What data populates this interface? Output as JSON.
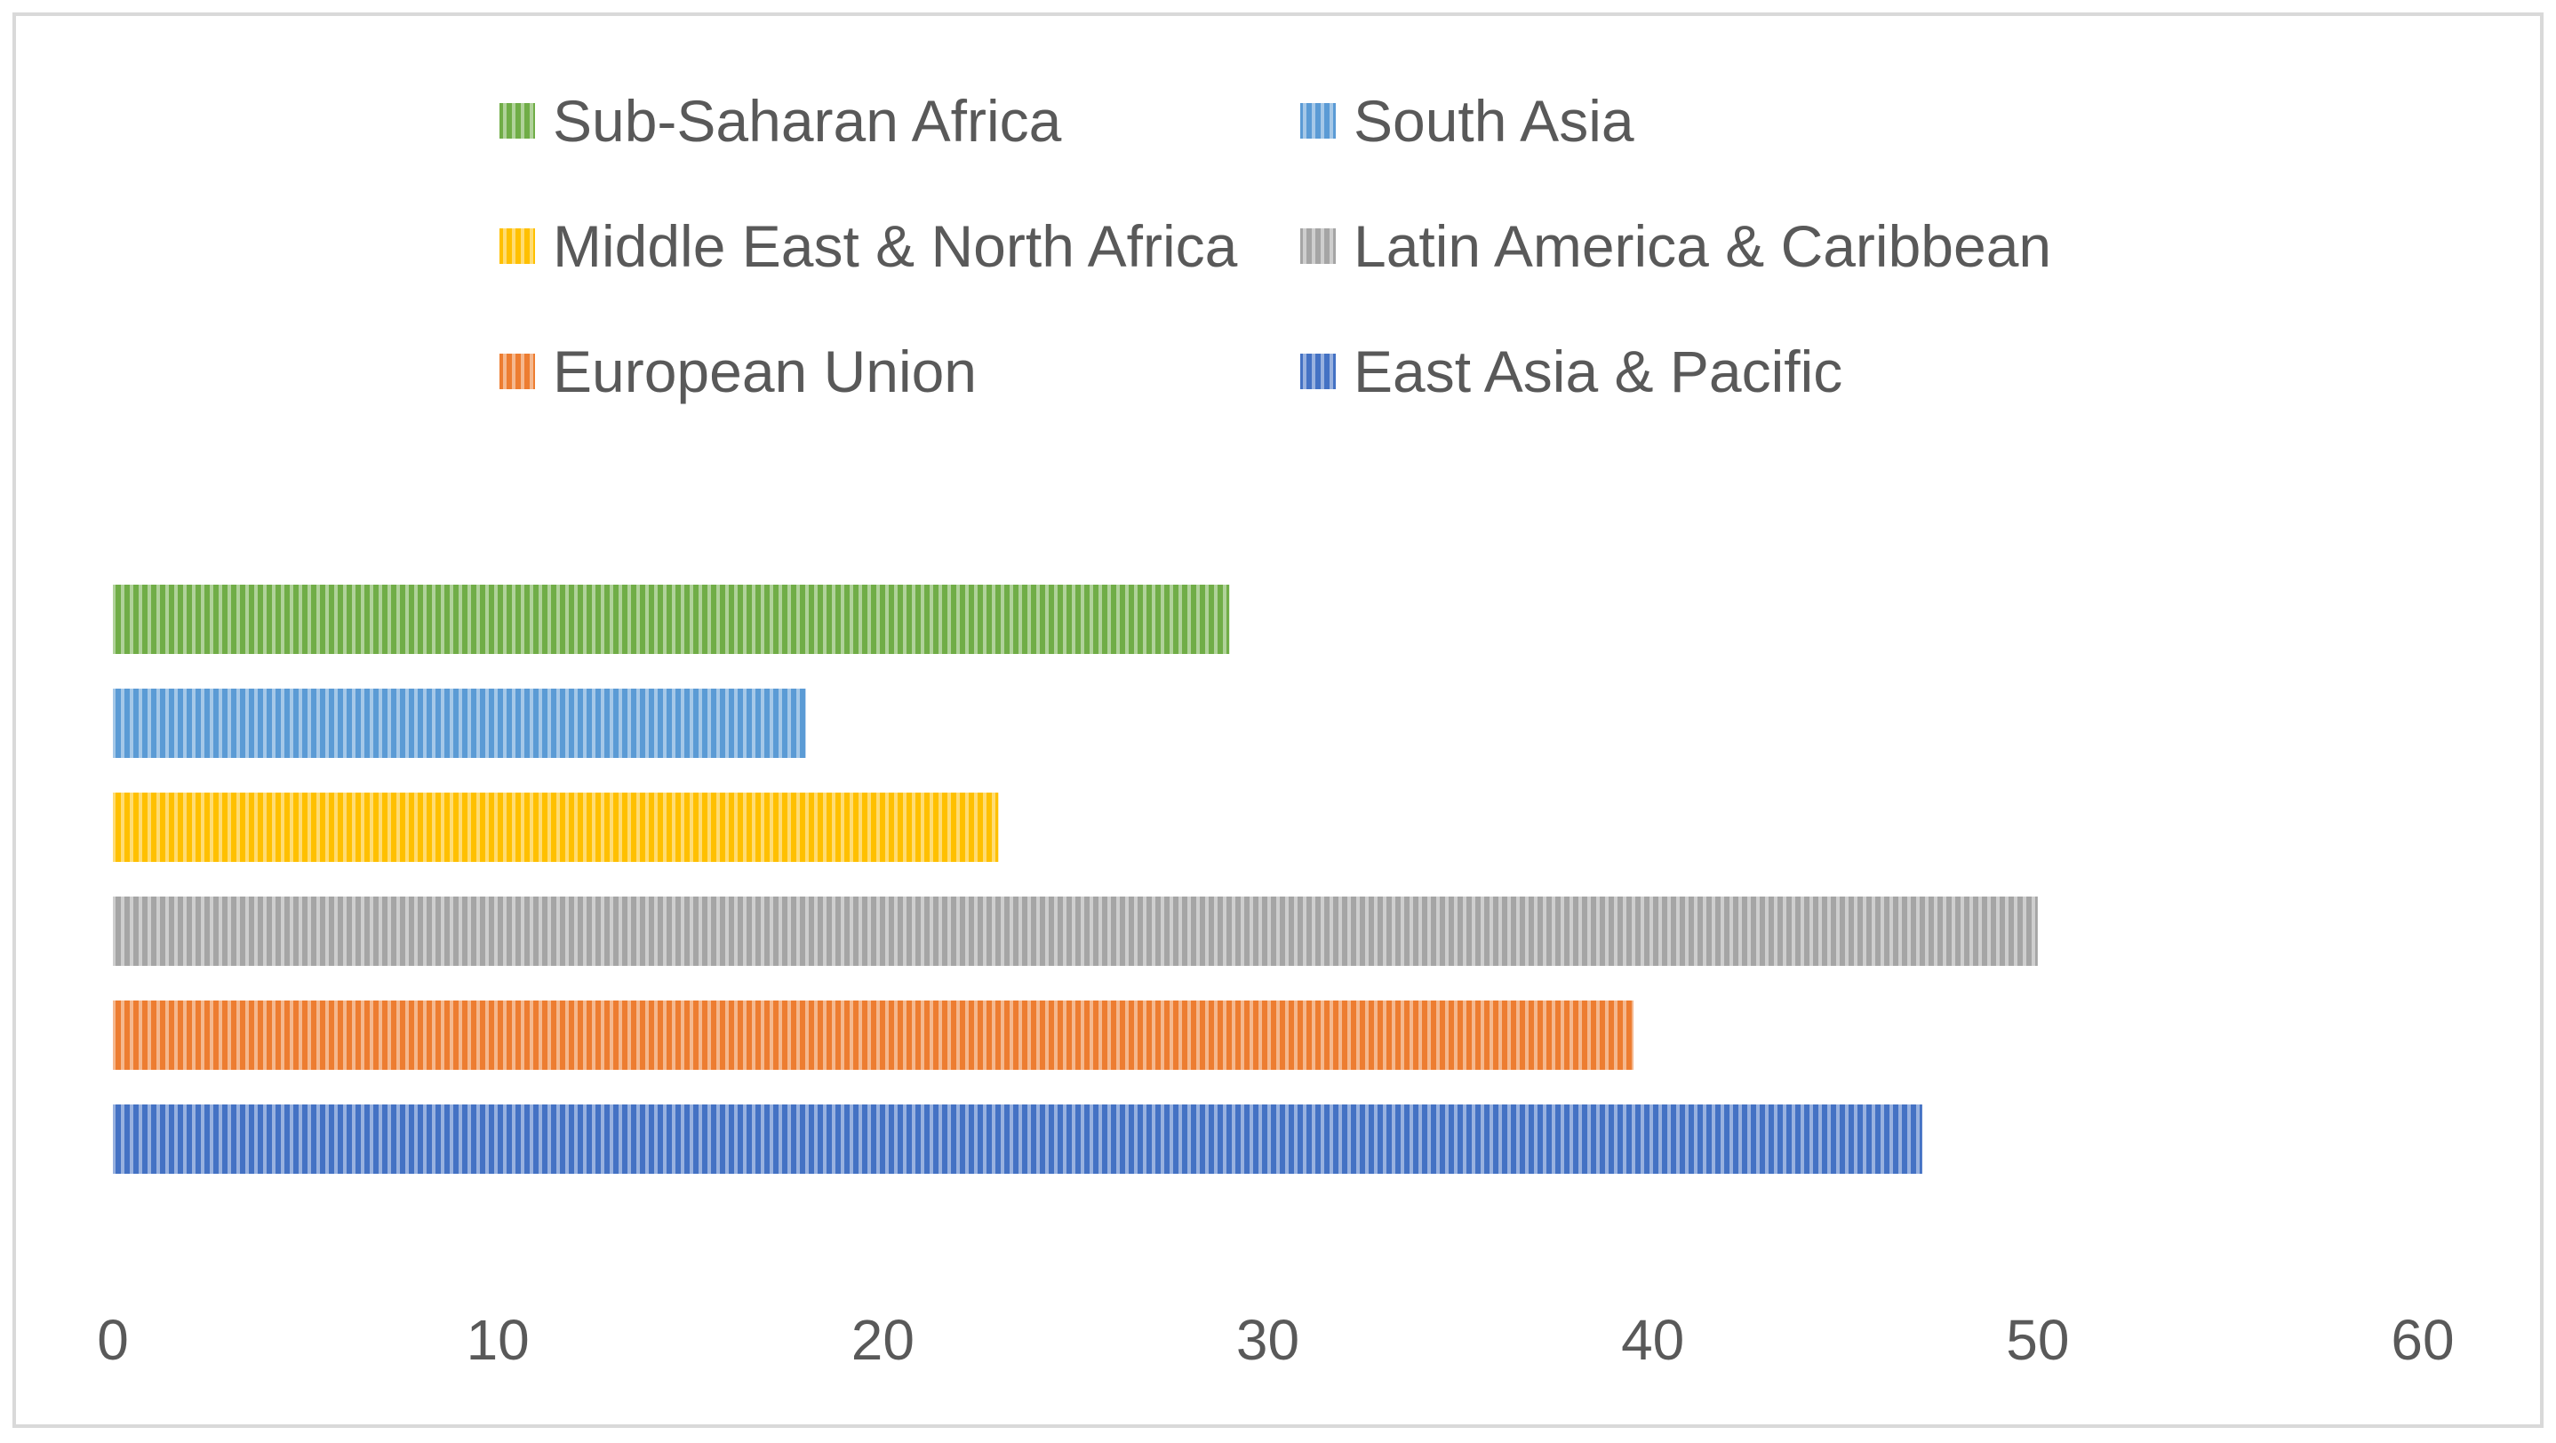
{
  "chart_data": {
    "type": "bar",
    "orientation": "horizontal",
    "title": "",
    "xlabel": "",
    "ylabel": "",
    "xlim": [
      0,
      60
    ],
    "x_ticks": [
      0,
      10,
      20,
      30,
      40,
      50,
      60
    ],
    "grid": false,
    "legend_position": "top",
    "bar_pattern": "vertical-stripes",
    "series": [
      {
        "name": "Sub-Saharan Africa",
        "value": 29,
        "color": "#70AD47"
      },
      {
        "name": "South Asia",
        "value": 18,
        "color": "#5B9BD5"
      },
      {
        "name": "Middle East & North Africa",
        "value": 23,
        "color": "#FFC000"
      },
      {
        "name": "Latin America & Caribbean",
        "value": 50,
        "color": "#A5A5A5"
      },
      {
        "name": "European Union",
        "value": 39.5,
        "color": "#ED7D31"
      },
      {
        "name": "East Asia & Pacific",
        "value": 47,
        "color": "#4472C4"
      }
    ]
  },
  "style": {
    "text_color": "#595959",
    "border_color": "#D9D9D9",
    "background": "#FFFFFF"
  }
}
